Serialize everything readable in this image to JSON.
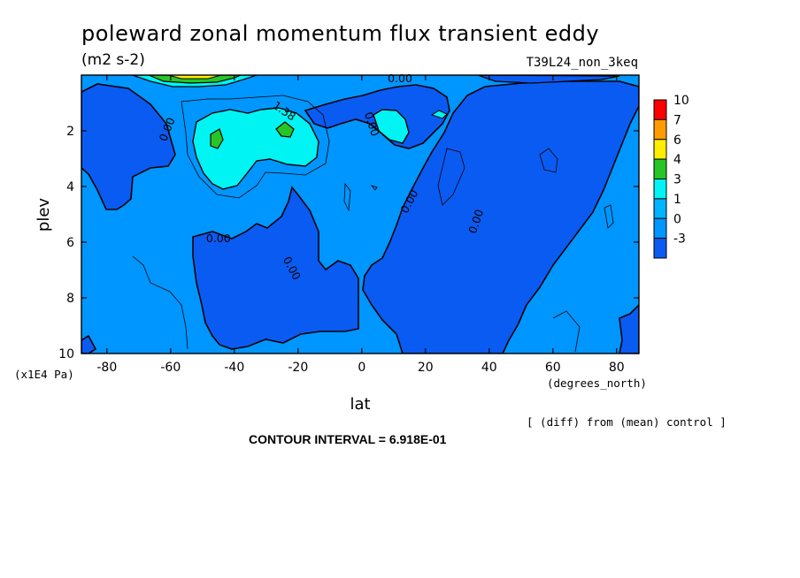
{
  "chart_data": {
    "type": "heatmap",
    "title": "poleward zonal momentum flux transient eddy",
    "units": "(m2 s-2)",
    "experiment": "T39L24_non_3keq",
    "xlabel": "lat",
    "xunits": "(degrees_north)",
    "ylabel": "plev",
    "yunits": "(x1E4 Pa)",
    "xlim": [
      -88,
      87
    ],
    "ylim": [
      10,
      0
    ],
    "x_ticks": [
      -80,
      -60,
      -40,
      -20,
      0,
      20,
      40,
      60,
      80
    ],
    "x_tick_labels": [
      "-80",
      "-60",
      "-40",
      "-20",
      "0",
      "20",
      "40",
      "60",
      "80"
    ],
    "y_ticks": [
      2,
      4,
      6,
      8,
      10
    ],
    "y_tick_labels": [
      "2",
      "4",
      "6",
      "8",
      "10"
    ],
    "contour_interval": "CONTOUR INTERVAL = 6.918E-01",
    "note": "[ (diff) from (mean) control ]",
    "legend": {
      "placement": "right",
      "levels": [
        "10",
        "7",
        "6",
        "4",
        "3",
        "1",
        "0",
        "-3"
      ],
      "colors": [
        "#ff0000",
        "#ff9b00",
        "#ffee00",
        "#27c627",
        "#00f4f4",
        "#00b4ff",
        "#0096ff",
        "#0a5bf2"
      ]
    },
    "contour_labels": [
      {
        "text": "0.00",
        "x": 12,
        "y": 0.25,
        "rotate": 0
      },
      {
        "text": "0.00",
        "x": -60,
        "y": 2.0,
        "rotate": -68
      },
      {
        "text": "1.38",
        "x": -25,
        "y": 1.4,
        "rotate": 35
      },
      {
        "text": "0.00",
        "x": 2,
        "y": 1.8,
        "rotate": 72
      },
      {
        "text": "0.00",
        "x": -45,
        "y": 6.0,
        "rotate": 0
      },
      {
        "text": "0.00",
        "x": -23,
        "y": 7.0,
        "rotate": 62
      },
      {
        "text": "0.00",
        "x": 16,
        "y": 4.6,
        "rotate": -62
      },
      {
        "text": "0.00",
        "x": 37,
        "y": 5.3,
        "rotate": -72
      }
    ]
  }
}
